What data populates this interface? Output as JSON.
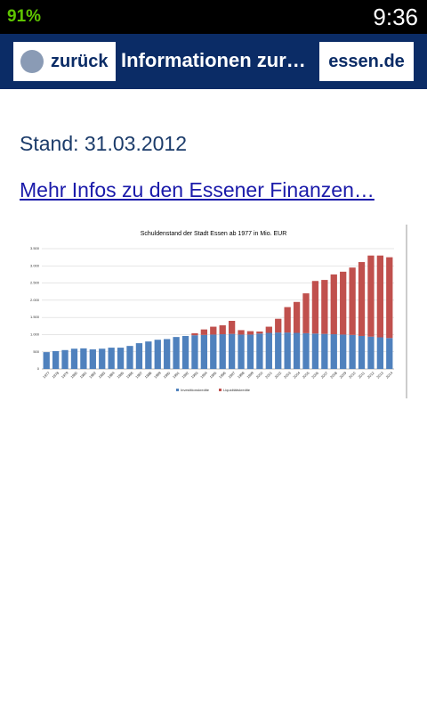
{
  "status_bar": {
    "battery": "91%",
    "time": "9:36"
  },
  "nav": {
    "back": "zurück",
    "title": "Informationen zur…",
    "brand": "essen.de"
  },
  "content": {
    "stand": "Stand: 31.03.2012",
    "link": "Mehr Infos zu den Essener Finanzen…"
  },
  "chart_data": {
    "type": "stacked-bar",
    "title": "Schuldenstand der Stadt Essen ab 1977 in Mio. EUR",
    "categories": [
      "1977",
      "1978",
      "1979",
      "1980",
      "1981",
      "1982",
      "1983",
      "1984",
      "1985",
      "1986",
      "1987",
      "1988",
      "1989",
      "1990",
      "1991",
      "1992",
      "1993",
      "1994",
      "1995",
      "1996",
      "1997",
      "1998",
      "1999",
      "2000",
      "2001",
      "2002",
      "2003",
      "2004",
      "2005",
      "2006",
      "2007",
      "2008",
      "2009",
      "2010",
      "2011",
      "2012",
      "2013",
      "2014"
    ],
    "series": [
      {
        "name": "Investitionskredite",
        "color": "#4f81bd",
        "values": [
          490,
          520,
          550,
          590,
          600,
          570,
          590,
          620,
          620,
          670,
          750,
          800,
          850,
          870,
          930,
          960,
          980,
          990,
          1000,
          1010,
          1020,
          1000,
          1000,
          1030,
          1050,
          1060,
          1060,
          1050,
          1040,
          1030,
          1020,
          1010,
          1000,
          990,
          960,
          940,
          920,
          900
        ]
      },
      {
        "name": "Liquiditätskredite",
        "color": "#c0504d",
        "values": [
          0,
          0,
          0,
          0,
          0,
          0,
          0,
          0,
          0,
          0,
          0,
          0,
          0,
          0,
          0,
          0,
          60,
          160,
          230,
          260,
          380,
          130,
          100,
          60,
          180,
          400,
          740,
          900,
          1160,
          1530,
          1570,
          1740,
          1830,
          1960,
          2150,
          2360,
          2380,
          2350
        ]
      }
    ],
    "ylim": [
      0,
      3500
    ],
    "yticks": [
      0,
      500,
      {
        "value": 1000,
        "label": "1.000"
      },
      {
        "value": 1500,
        "label": "1.500"
      },
      {
        "value": 2000,
        "label": "2.000"
      },
      {
        "value": 2500,
        "label": "2.500"
      },
      {
        "value": 3000,
        "label": "3.000"
      },
      {
        "value": 3500,
        "label": "3.500"
      }
    ],
    "grid": true,
    "legend": "bottom"
  }
}
